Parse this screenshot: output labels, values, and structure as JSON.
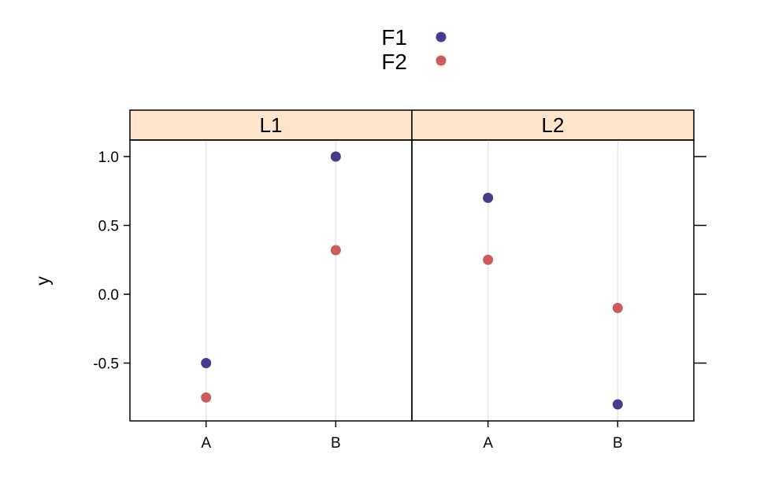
{
  "chart_data": {
    "type": "scatter",
    "title": "",
    "xlabel": "",
    "ylabel": "y",
    "ylim": [
      -0.92,
      1.12
    ],
    "yticks": [
      "1.0",
      "0.5",
      "0.0",
      "-0.5"
    ],
    "ytick_values": [
      1.0,
      0.5,
      0.0,
      -0.5
    ],
    "categories": [
      "A",
      "B"
    ],
    "panels": [
      {
        "name": "L1"
      },
      {
        "name": "L2"
      }
    ],
    "series": [
      {
        "name": "F1",
        "color": "#473c8b",
        "panel_values": [
          [
            -0.5,
            1.0
          ],
          [
            0.7,
            -0.8
          ]
        ]
      },
      {
        "name": "F2",
        "color": "#cd5b5b",
        "panel_values": [
          [
            -0.75,
            0.32
          ],
          [
            0.25,
            -0.1
          ]
        ]
      }
    ],
    "legend_position": "top-center",
    "strip_color": "#ffe5cc",
    "guide_line_color": "#e6e6e6"
  }
}
